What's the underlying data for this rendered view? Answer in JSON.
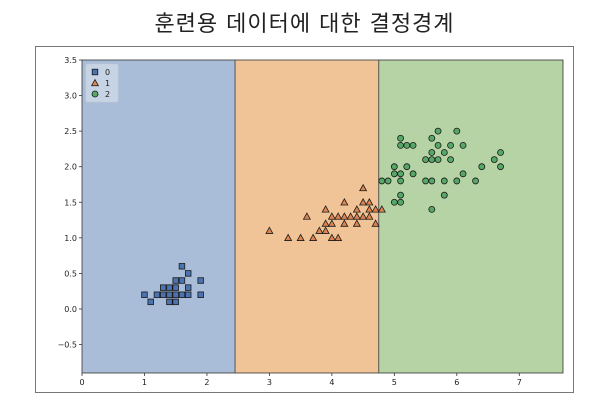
{
  "chart_data": {
    "type": "scatter",
    "title": "훈련용 데이터에 대한 결정경계",
    "xlabel": "",
    "ylabel": "",
    "xlim": [
      0,
      7.7
    ],
    "ylim": [
      -0.9,
      3.5
    ],
    "x_ticks": [
      "0",
      "1",
      "2",
      "3",
      "4",
      "5",
      "6",
      "7"
    ],
    "y_ticks": [
      "−0.5",
      "0.0",
      "0.5",
      "1.0",
      "1.5",
      "2.0",
      "2.5",
      "3.0",
      "3.5"
    ],
    "legend_position": "top-left",
    "grid": false,
    "regions": [
      {
        "class": "0",
        "x_range": [
          0,
          2.45
        ],
        "color": "#a9bdd8"
      },
      {
        "class": "1",
        "x_range": [
          2.45,
          4.75
        ],
        "color": "#f0c496"
      },
      {
        "class": "2",
        "x_range": [
          4.75,
          7.7
        ],
        "color": "#b6d3a5"
      }
    ],
    "boundaries": [
      2.45,
      4.75
    ],
    "series": [
      {
        "name": "0",
        "marker": "square",
        "color": "#4c72b0",
        "points": [
          [
            1.0,
            0.2
          ],
          [
            1.1,
            0.1
          ],
          [
            1.2,
            0.2
          ],
          [
            1.3,
            0.2
          ],
          [
            1.3,
            0.3
          ],
          [
            1.4,
            0.1
          ],
          [
            1.4,
            0.2
          ],
          [
            1.4,
            0.3
          ],
          [
            1.5,
            0.1
          ],
          [
            1.5,
            0.2
          ],
          [
            1.5,
            0.3
          ],
          [
            1.5,
            0.4
          ],
          [
            1.6,
            0.2
          ],
          [
            1.6,
            0.4
          ],
          [
            1.6,
            0.6
          ],
          [
            1.7,
            0.2
          ],
          [
            1.7,
            0.3
          ],
          [
            1.7,
            0.5
          ],
          [
            1.9,
            0.2
          ],
          [
            1.9,
            0.4
          ]
        ]
      },
      {
        "name": "1",
        "marker": "triangle",
        "color": "#dd8452",
        "points": [
          [
            3.0,
            1.1
          ],
          [
            3.3,
            1.0
          ],
          [
            3.5,
            1.0
          ],
          [
            3.6,
            1.3
          ],
          [
            3.7,
            1.0
          ],
          [
            3.8,
            1.1
          ],
          [
            3.9,
            1.1
          ],
          [
            3.9,
            1.2
          ],
          [
            3.9,
            1.4
          ],
          [
            4.0,
            1.0
          ],
          [
            4.0,
            1.2
          ],
          [
            4.0,
            1.3
          ],
          [
            4.1,
            1.0
          ],
          [
            4.1,
            1.3
          ],
          [
            4.2,
            1.2
          ],
          [
            4.2,
            1.3
          ],
          [
            4.2,
            1.5
          ],
          [
            4.3,
            1.3
          ],
          [
            4.4,
            1.2
          ],
          [
            4.4,
            1.3
          ],
          [
            4.4,
            1.4
          ],
          [
            4.5,
            1.3
          ],
          [
            4.5,
            1.5
          ],
          [
            4.6,
            1.3
          ],
          [
            4.6,
            1.4
          ],
          [
            4.6,
            1.5
          ],
          [
            4.7,
            1.2
          ],
          [
            4.7,
            1.4
          ],
          [
            4.8,
            1.4
          ],
          [
            4.5,
            1.7
          ]
        ]
      },
      {
        "name": "2",
        "marker": "circle",
        "color": "#55a868",
        "points": [
          [
            4.8,
            1.8
          ],
          [
            4.9,
            1.8
          ],
          [
            5.0,
            1.5
          ],
          [
            5.0,
            1.9
          ],
          [
            5.0,
            2.0
          ],
          [
            5.1,
            1.5
          ],
          [
            5.1,
            1.6
          ],
          [
            5.1,
            1.8
          ],
          [
            5.1,
            1.9
          ],
          [
            5.1,
            2.3
          ],
          [
            5.1,
            2.4
          ],
          [
            5.2,
            2.0
          ],
          [
            5.2,
            2.3
          ],
          [
            5.3,
            1.9
          ],
          [
            5.3,
            2.3
          ],
          [
            5.5,
            1.8
          ],
          [
            5.5,
            2.1
          ],
          [
            5.6,
            1.4
          ],
          [
            5.6,
            1.8
          ],
          [
            5.6,
            2.1
          ],
          [
            5.6,
            2.2
          ],
          [
            5.6,
            2.4
          ],
          [
            5.7,
            2.1
          ],
          [
            5.7,
            2.3
          ],
          [
            5.7,
            2.5
          ],
          [
            5.8,
            1.6
          ],
          [
            5.8,
            1.8
          ],
          [
            5.8,
            2.2
          ],
          [
            5.9,
            2.1
          ],
          [
            5.9,
            2.3
          ],
          [
            6.0,
            1.8
          ],
          [
            6.0,
            2.5
          ],
          [
            6.1,
            1.9
          ],
          [
            6.1,
            2.3
          ],
          [
            6.3,
            1.8
          ],
          [
            6.4,
            2.0
          ],
          [
            6.6,
            2.1
          ],
          [
            6.7,
            2.0
          ],
          [
            6.7,
            2.2
          ]
        ]
      }
    ]
  }
}
